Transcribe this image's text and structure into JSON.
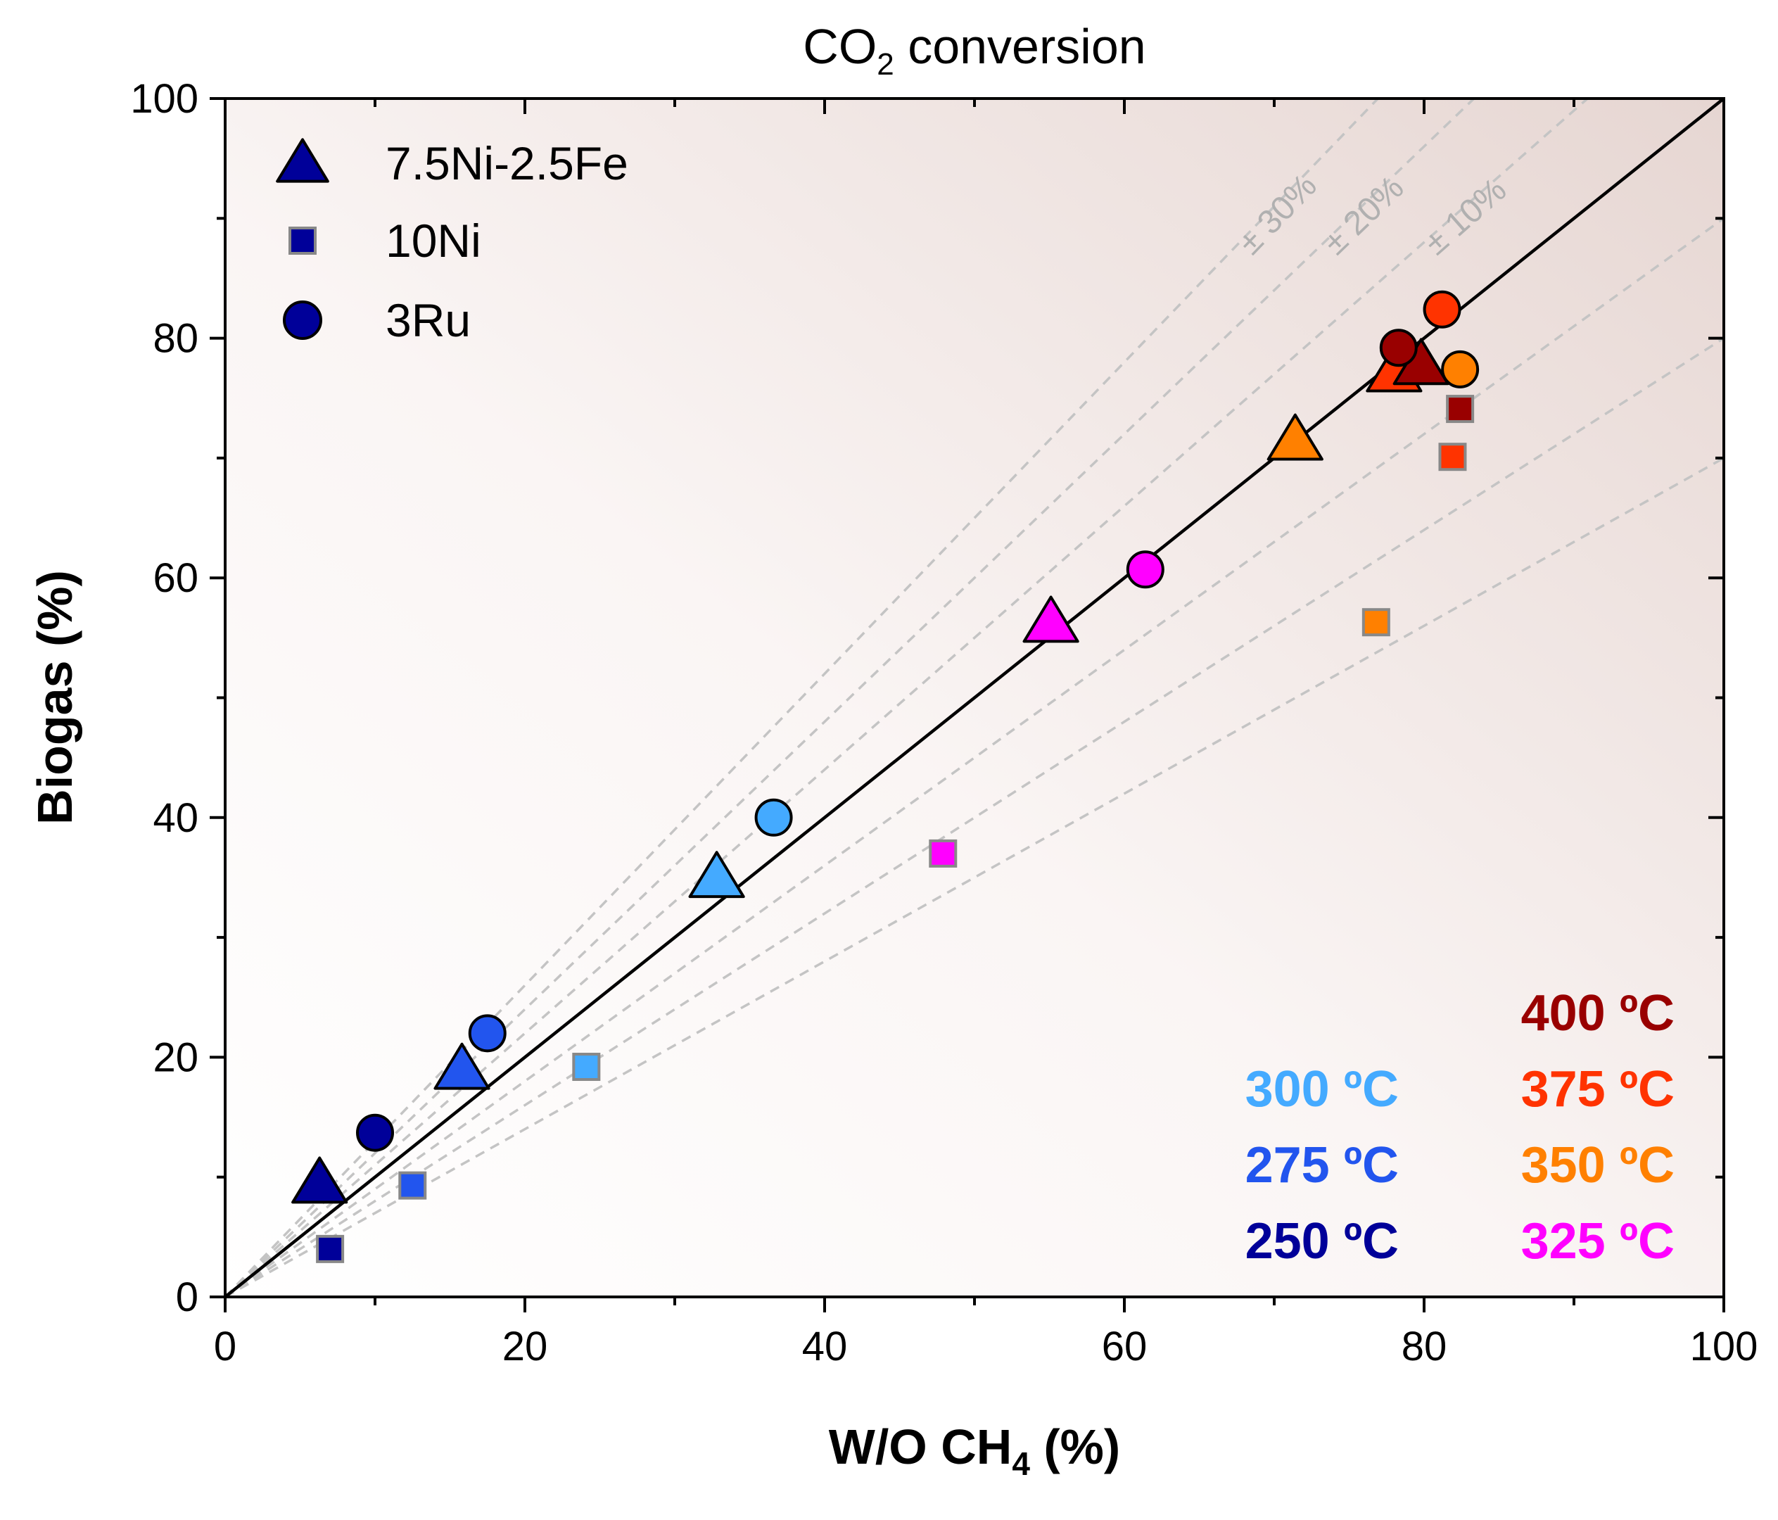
{
  "chart_data": {
    "type": "scatter",
    "title": {
      "main": "CO",
      "sub": "2",
      "rest": " conversion"
    },
    "xlabel": {
      "main": "W/O CH",
      "sub": "4",
      "rest": " (%)"
    },
    "ylabel": "Biogas (%)",
    "xlim": [
      0,
      100
    ],
    "ylim": [
      0,
      100
    ],
    "x_ticks": [
      "0",
      "20",
      "40",
      "60",
      "80",
      "100"
    ],
    "y_ticks": [
      "0",
      "20",
      "40",
      "60",
      "80",
      "100"
    ],
    "legend": [
      {
        "name": "7.5Ni-2.5Fe",
        "marker": "triangle"
      },
      {
        "name": "10Ni",
        "marker": "square"
      },
      {
        "name": "3Ru",
        "marker": "circle"
      }
    ],
    "parity_line": {
      "slope": 1
    },
    "bands": [
      {
        "label": "± 30%",
        "factors": [
          1.3,
          0.7
        ]
      },
      {
        "label": "± 20%",
        "factors": [
          1.2,
          0.8
        ]
      },
      {
        "label": "± 10%",
        "factors": [
          1.1,
          0.9
        ]
      }
    ],
    "temperatures": [
      {
        "label": "400 ºC",
        "color": "#990000"
      },
      {
        "label": "375 ºC",
        "color": "#ff3300"
      },
      {
        "label": "350 ºC",
        "color": "#ff8000"
      },
      {
        "label": "325 ºC",
        "color": "#ff00ff"
      },
      {
        "label": "300 ºC",
        "color": "#44aaff"
      },
      {
        "label": "275 ºC",
        "color": "#2255ee"
      },
      {
        "label": "250 ºC",
        "color": "#000099"
      }
    ],
    "series": [
      {
        "name": "7.5Ni-2.5Fe",
        "marker": "triangle",
        "points": [
          {
            "x": 6.3,
            "y": 9.5,
            "temp": "250 ºC"
          },
          {
            "x": 15.8,
            "y": 19.0,
            "temp": "275 ºC"
          },
          {
            "x": 32.8,
            "y": 35.0,
            "temp": "300 ºC"
          },
          {
            "x": 55.1,
            "y": 56.3,
            "temp": "325 ºC"
          },
          {
            "x": 71.4,
            "y": 71.5,
            "temp": "350 ºC"
          },
          {
            "x": 78.0,
            "y": 77.2,
            "temp": "375 ºC"
          },
          {
            "x": 79.8,
            "y": 77.8,
            "temp": "400 ºC"
          }
        ]
      },
      {
        "name": "10Ni",
        "marker": "square",
        "points": [
          {
            "x": 7.0,
            "y": 4.0,
            "temp": "250 ºC"
          },
          {
            "x": 12.5,
            "y": 9.3,
            "temp": "275 ºC"
          },
          {
            "x": 24.1,
            "y": 19.2,
            "temp": "300 ºC"
          },
          {
            "x": 47.9,
            "y": 37.0,
            "temp": "325 ºC"
          },
          {
            "x": 76.8,
            "y": 56.3,
            "temp": "350 ºC"
          },
          {
            "x": 81.9,
            "y": 70.1,
            "temp": "375 ºC"
          },
          {
            "x": 82.4,
            "y": 74.1,
            "temp": "400 ºC"
          }
        ]
      },
      {
        "name": "3Ru",
        "marker": "circle",
        "points": [
          {
            "x": 10.0,
            "y": 13.7,
            "temp": "250 ºC"
          },
          {
            "x": 17.5,
            "y": 22.0,
            "temp": "275 ºC"
          },
          {
            "x": 36.6,
            "y": 40.0,
            "temp": "300 ºC"
          },
          {
            "x": 61.4,
            "y": 60.7,
            "temp": "325 ºC"
          },
          {
            "x": 82.4,
            "y": 77.4,
            "temp": "350 ºC"
          },
          {
            "x": 81.2,
            "y": 82.4,
            "temp": "375 ºC"
          },
          {
            "x": 78.3,
            "y": 79.2,
            "temp": "400 ºC"
          }
        ]
      }
    ]
  }
}
